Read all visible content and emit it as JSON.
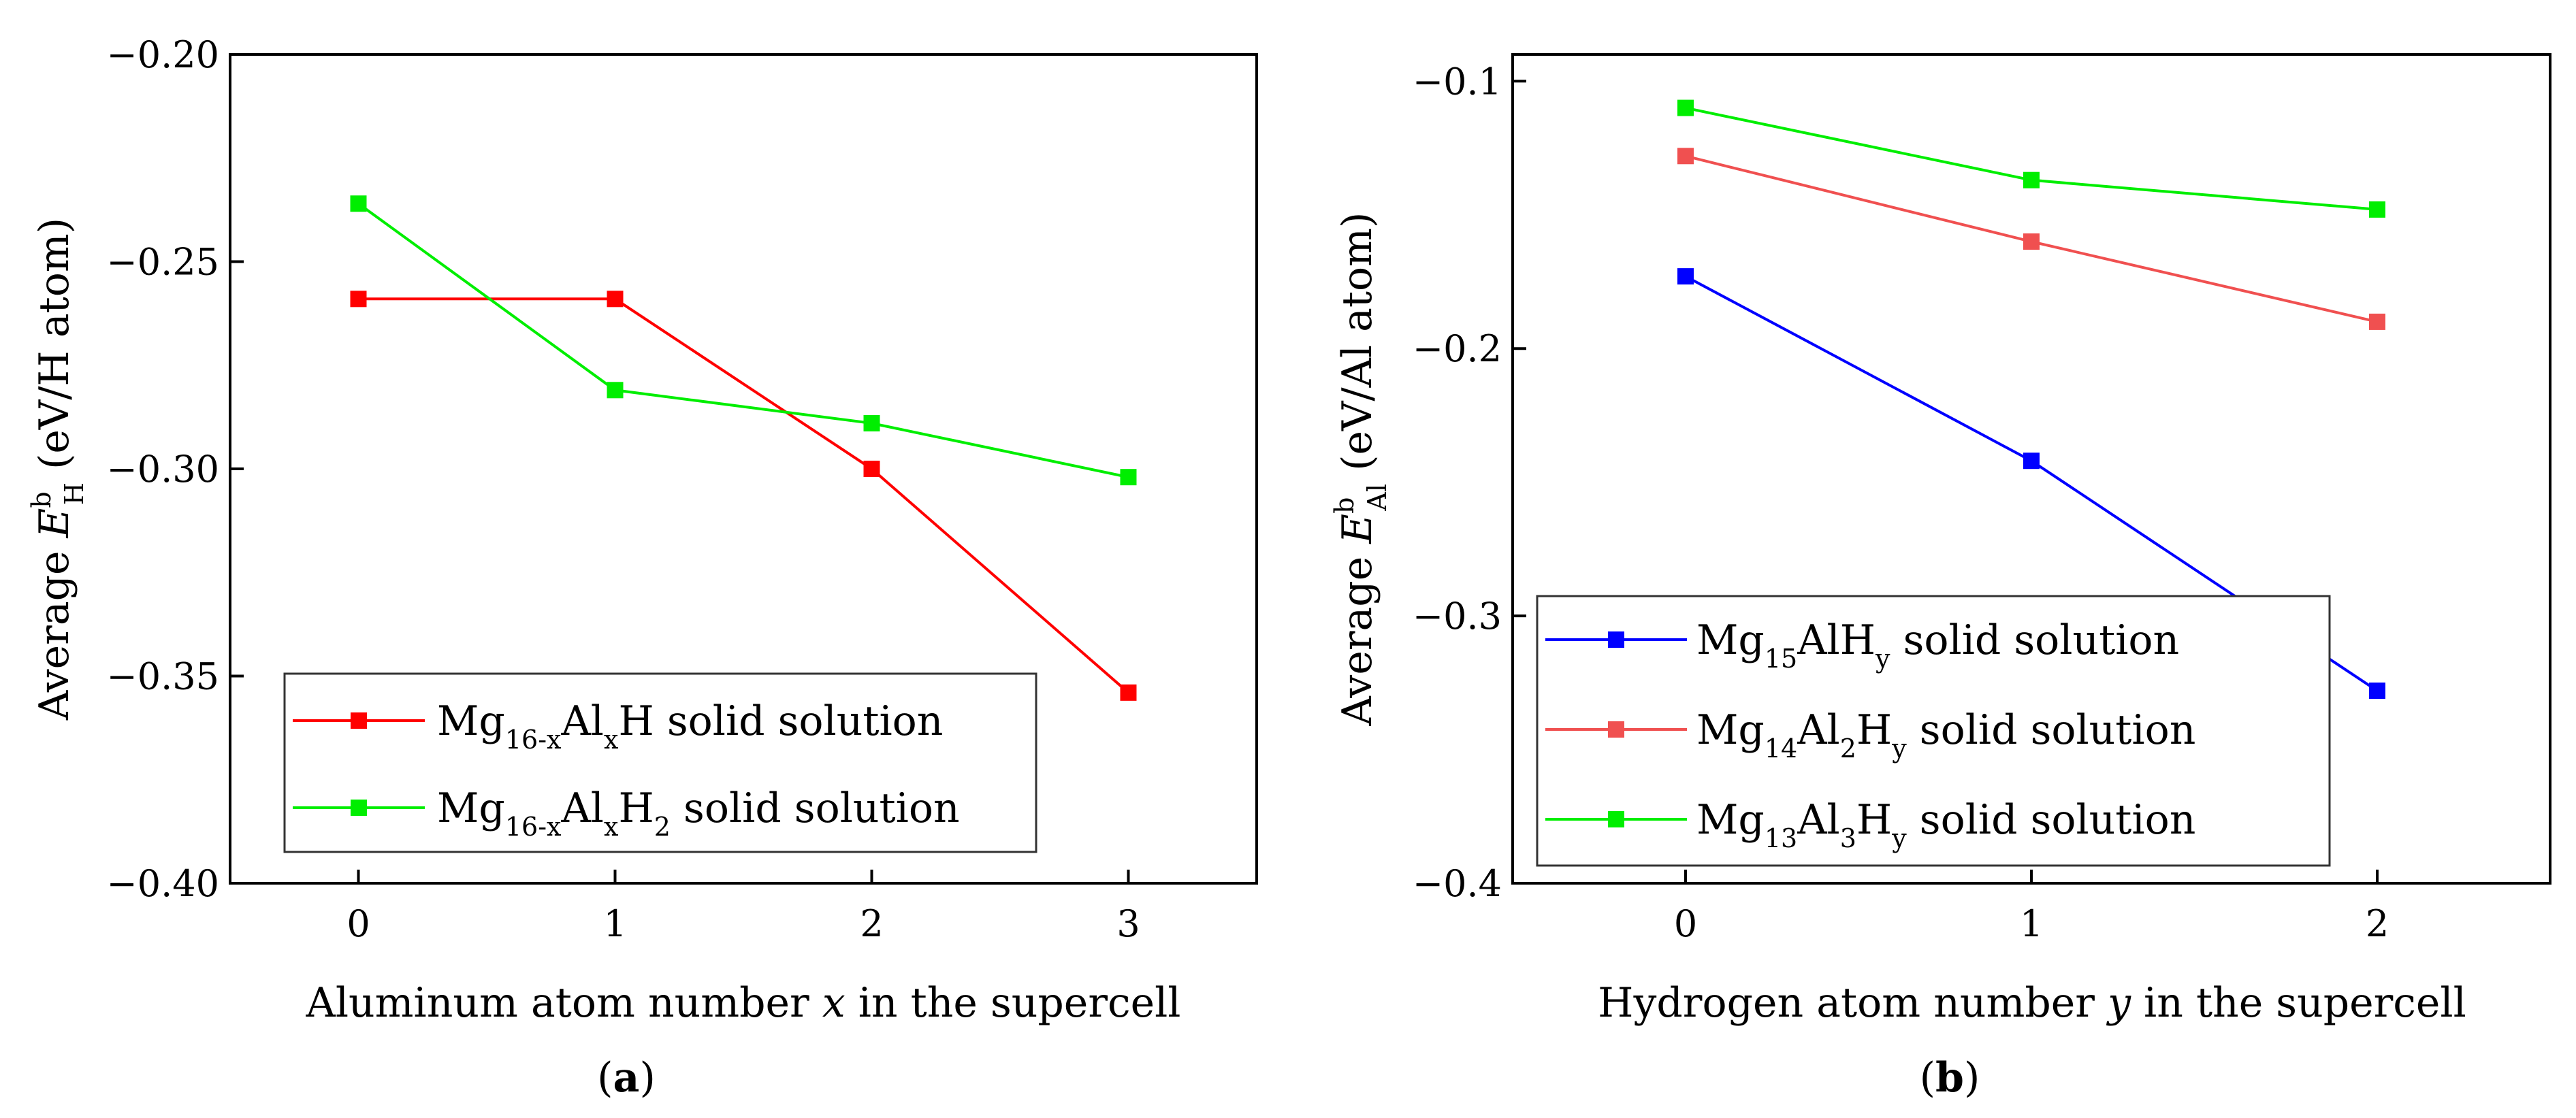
{
  "chart_data": [
    {
      "type": "line",
      "panel_label": {
        "open": "(",
        "letter": "a",
        "close": ")"
      },
      "xlabel": {
        "before": "Aluminum atom number ",
        "var": "x",
        "after": " in the supercell"
      },
      "ylabel": {
        "prefix": "Average ",
        "E": "E",
        "sup": "b",
        "sub": "H",
        "suffix": " (eV/H atom)"
      },
      "x": [
        0,
        1,
        2,
        3
      ],
      "xlim": [
        -0.5,
        3.5
      ],
      "ylim": [
        -0.4,
        -0.2
      ],
      "xticks": [
        "0",
        "1",
        "2",
        "3"
      ],
      "yticks": [
        {
          "value": -0.2,
          "label": "−0.20"
        },
        {
          "value": -0.25,
          "label": "−0.25"
        },
        {
          "value": -0.3,
          "label": "−0.30"
        },
        {
          "value": -0.35,
          "label": "−0.35"
        },
        {
          "value": -0.4,
          "label": "−0.40"
        }
      ],
      "legend_position": "bottom-left",
      "series": [
        {
          "name": "Mg16-xAlxH solid solution",
          "color": "#ff0000",
          "values": [
            -0.259,
            -0.259,
            -0.3,
            -0.354
          ],
          "label_parts": [
            {
              "t": "Mg",
              "s": "n"
            },
            {
              "t": "16-x",
              "s": "sub"
            },
            {
              "t": "Al",
              "s": "n"
            },
            {
              "t": "x",
              "s": "sub"
            },
            {
              "t": "H solid solution",
              "s": "n"
            }
          ]
        },
        {
          "name": "Mg16-xAlxH2 solid solution",
          "color": "#00ee00",
          "values": [
            -0.236,
            -0.281,
            -0.289,
            -0.302
          ],
          "label_parts": [
            {
              "t": "Mg",
              "s": "n"
            },
            {
              "t": "16-x",
              "s": "sub"
            },
            {
              "t": "Al",
              "s": "n"
            },
            {
              "t": "x",
              "s": "sub"
            },
            {
              "t": "H",
              "s": "n"
            },
            {
              "t": "2",
              "s": "sub"
            },
            {
              "t": " solid solution",
              "s": "n"
            }
          ]
        }
      ]
    },
    {
      "type": "line",
      "panel_label": {
        "open": "(",
        "letter": "b",
        "close": ")"
      },
      "xlabel": {
        "before": "Hydrogen atom number ",
        "var": "y",
        "after": " in the supercell"
      },
      "ylabel": {
        "prefix": "Average ",
        "E": "E",
        "sup": "b",
        "sub": "Al",
        "suffix": " (eV/Al atom)"
      },
      "x": [
        0,
        1,
        2
      ],
      "xlim": [
        -0.5,
        2.5
      ],
      "ylim": [
        -0.4,
        -0.09
      ],
      "xticks": [
        "0",
        "1",
        "2"
      ],
      "yticks": [
        {
          "value": -0.1,
          "label": "−0.1"
        },
        {
          "value": -0.2,
          "label": "−0.2"
        },
        {
          "value": -0.3,
          "label": "−0.3"
        },
        {
          "value": -0.4,
          "label": "−0.4"
        }
      ],
      "legend_position": "bottom-left",
      "series": [
        {
          "name": "Mg15AlHy solid solution",
          "color": "#0000ff",
          "values": [
            -0.173,
            -0.242,
            -0.328
          ],
          "label_parts": [
            {
              "t": "Mg",
              "s": "n"
            },
            {
              "t": "15",
              "s": "sub"
            },
            {
              "t": "AlH",
              "s": "n"
            },
            {
              "t": "y",
              "s": "sub"
            },
            {
              "t": " solid solution",
              "s": "n"
            }
          ]
        },
        {
          "name": "Mg14Al2Hy solid solution",
          "color": "#f05050",
          "values": [
            -0.128,
            -0.16,
            -0.19
          ],
          "label_parts": [
            {
              "t": "Mg",
              "s": "n"
            },
            {
              "t": "14",
              "s": "sub"
            },
            {
              "t": "Al",
              "s": "n"
            },
            {
              "t": "2",
              "s": "sub"
            },
            {
              "t": "H",
              "s": "n"
            },
            {
              "t": "y",
              "s": "sub"
            },
            {
              "t": " solid solution",
              "s": "n"
            }
          ]
        },
        {
          "name": "Mg13Al3Hy solid solution",
          "color": "#00ee00",
          "values": [
            -0.11,
            -0.137,
            -0.148
          ],
          "label_parts": [
            {
              "t": "Mg",
              "s": "n"
            },
            {
              "t": "13",
              "s": "sub"
            },
            {
              "t": "Al",
              "s": "n"
            },
            {
              "t": "3",
              "s": "sub"
            },
            {
              "t": "H",
              "s": "n"
            },
            {
              "t": "y",
              "s": "sub"
            },
            {
              "t": " solid solution",
              "s": "n"
            }
          ]
        }
      ]
    }
  ]
}
